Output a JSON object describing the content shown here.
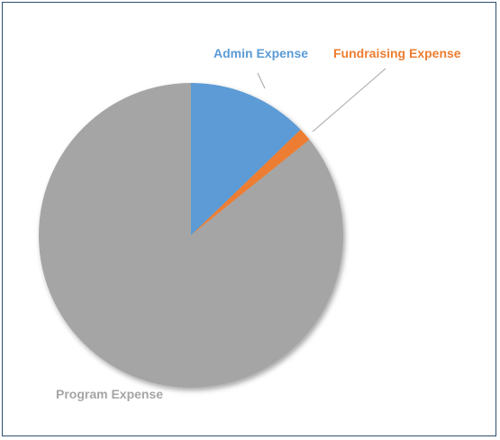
{
  "chart_data": {
    "type": "pie",
    "title": "",
    "slices": [
      {
        "label": "Admin Expense",
        "value": 12.8,
        "color": "#5b9bd5",
        "label_color": "#5b9bd5"
      },
      {
        "label": "Fundraising Expense",
        "value": 1.4,
        "color": "#ed7d31",
        "label_color": "#ed7d31"
      },
      {
        "label": "Program Expense",
        "value": 85.8,
        "color": "#a5a5a5",
        "label_color": "#a5a5a5"
      }
    ],
    "legend": "none",
    "labels": "data labels with leader lines"
  }
}
